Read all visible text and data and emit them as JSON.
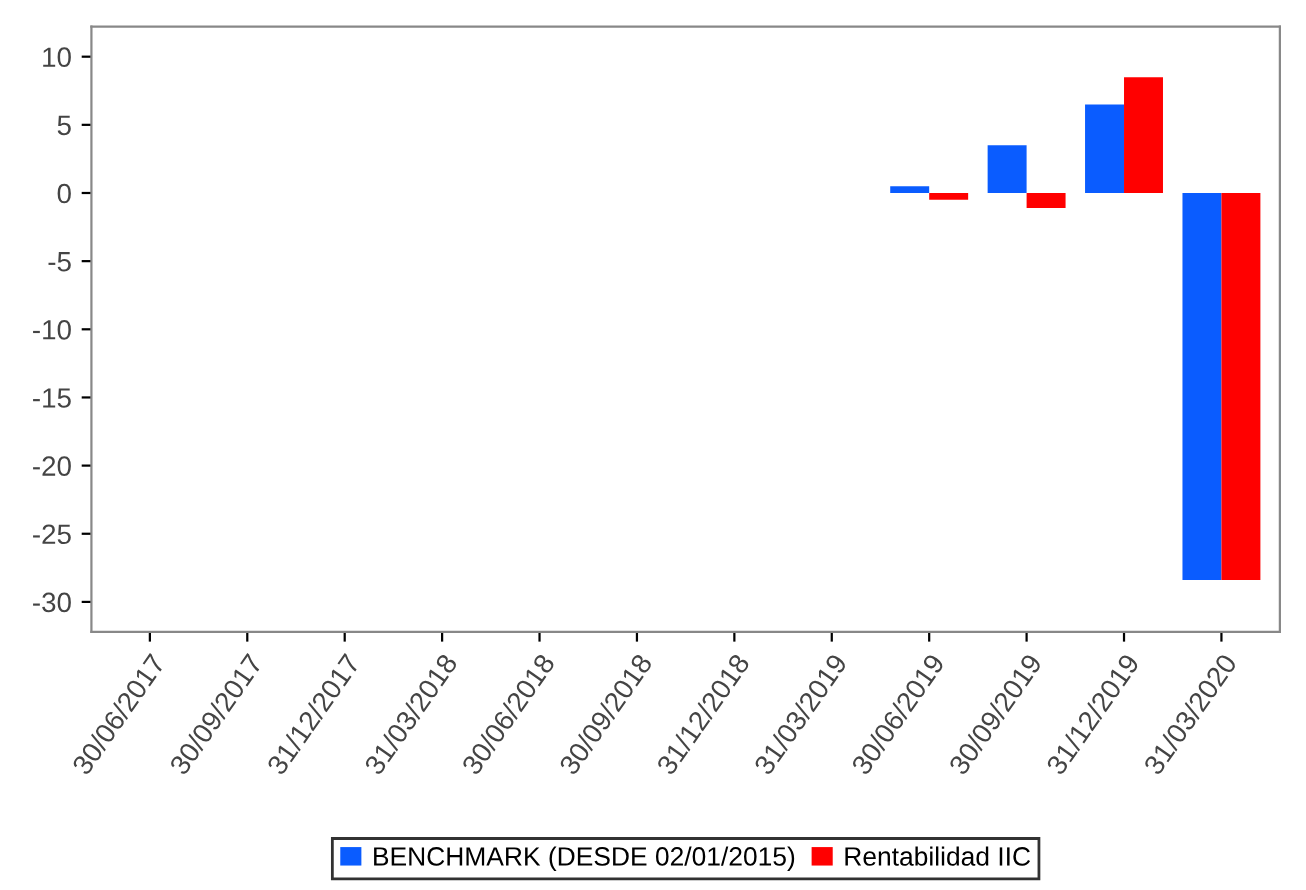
{
  "chart_data": {
    "type": "bar",
    "categories": [
      "30/06/2017",
      "30/09/2017",
      "31/12/2017",
      "31/03/2018",
      "30/06/2018",
      "30/09/2018",
      "31/12/2018",
      "31/03/2019",
      "30/06/2019",
      "30/09/2019",
      "31/12/2019",
      "31/03/2020"
    ],
    "series": [
      {
        "name": "BENCHMARK (DESDE 02/01/2015)",
        "color": "#0a5cff",
        "values": [
          null,
          null,
          null,
          null,
          null,
          null,
          null,
          null,
          0.5,
          3.5,
          6.5,
          -28.4
        ]
      },
      {
        "name": "Rentabilidad IIC",
        "color": "#ff0000",
        "values": [
          null,
          null,
          null,
          null,
          null,
          null,
          null,
          null,
          -0.5,
          -1.1,
          8.5,
          -28.4
        ]
      }
    ],
    "ylim": [
      -32.2,
      12.2
    ],
    "yticks": [
      -30,
      -25,
      -20,
      -15,
      -10,
      -5,
      0,
      5,
      10
    ],
    "grid": false,
    "legend": "bottom"
  }
}
